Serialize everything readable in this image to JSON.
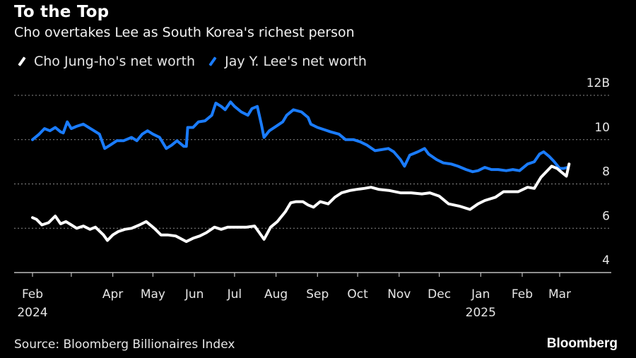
{
  "header": {
    "title": "To the Top",
    "subtitle": "Cho overtakes Lee as South Korea's richest person"
  },
  "legend": [
    {
      "label": "Cho Jung-ho's net worth",
      "color": "#ffffff"
    },
    {
      "label": "Jay Y. Lee's net worth",
      "color": "#1a7cff"
    }
  ],
  "footer": {
    "source": "Source: Bloomberg Billionaires Index",
    "brand": "Bloomberg"
  },
  "chart_data": {
    "type": "line",
    "title": "To the Top",
    "subtitle": "Cho overtakes Lee as South Korea's richest person",
    "xlabel": "",
    "ylabel": "",
    "ylim": [
      4,
      12
    ],
    "xlim": [
      "2024-02-01",
      "2025-03-20"
    ],
    "y_ticks": [
      {
        "value": 12,
        "label": "12B"
      },
      {
        "value": 10,
        "label": "10"
      },
      {
        "value": 8,
        "label": "8"
      },
      {
        "value": 6,
        "label": "6"
      },
      {
        "value": 4,
        "label": "4"
      }
    ],
    "x_ticks": [
      {
        "date": "2024-02-01",
        "label": "Feb",
        "sublabel": "2024"
      },
      {
        "date": "2024-03-01",
        "label": "",
        "sublabel": ""
      },
      {
        "date": "2024-04-01",
        "label": "Apr",
        "sublabel": ""
      },
      {
        "date": "2024-05-01",
        "label": "May",
        "sublabel": ""
      },
      {
        "date": "2024-06-01",
        "label": "Jun",
        "sublabel": ""
      },
      {
        "date": "2024-07-01",
        "label": "Jul",
        "sublabel": ""
      },
      {
        "date": "2024-08-01",
        "label": "Aug",
        "sublabel": ""
      },
      {
        "date": "2024-09-01",
        "label": "Sep",
        "sublabel": ""
      },
      {
        "date": "2024-10-01",
        "label": "Oct",
        "sublabel": ""
      },
      {
        "date": "2024-11-01",
        "label": "Nov",
        "sublabel": ""
      },
      {
        "date": "2024-12-01",
        "label": "Dec",
        "sublabel": ""
      },
      {
        "date": "2025-01-01",
        "label": "Jan",
        "sublabel": "2025"
      },
      {
        "date": "2025-02-01",
        "label": "Feb",
        "sublabel": ""
      },
      {
        "date": "2025-03-01",
        "label": "Mar",
        "sublabel": ""
      }
    ],
    "grid": true,
    "legend_position": "top-left",
    "series": [
      {
        "name": "Jay Y. Lee's net worth",
        "color": "#1a7cff",
        "points": [
          [
            "2024-02-01",
            10.0
          ],
          [
            "2024-02-06",
            10.25
          ],
          [
            "2024-02-10",
            10.5
          ],
          [
            "2024-02-14",
            10.4
          ],
          [
            "2024-02-18",
            10.55
          ],
          [
            "2024-02-22",
            10.35
          ],
          [
            "2024-02-24",
            10.3
          ],
          [
            "2024-02-27",
            10.8
          ],
          [
            "2024-03-01",
            10.5
          ],
          [
            "2024-03-05",
            10.6
          ],
          [
            "2024-03-10",
            10.7
          ],
          [
            "2024-03-14",
            10.55
          ],
          [
            "2024-03-18",
            10.4
          ],
          [
            "2024-03-22",
            10.25
          ],
          [
            "2024-03-26",
            9.6
          ],
          [
            "2024-03-30",
            9.75
          ],
          [
            "2024-04-04",
            9.95
          ],
          [
            "2024-04-09",
            9.95
          ],
          [
            "2024-04-15",
            10.1
          ],
          [
            "2024-04-19",
            9.95
          ],
          [
            "2024-04-23",
            10.25
          ],
          [
            "2024-04-27",
            10.4
          ],
          [
            "2024-05-01",
            10.25
          ],
          [
            "2024-05-06",
            10.1
          ],
          [
            "2024-05-11",
            9.6
          ],
          [
            "2024-05-15",
            9.75
          ],
          [
            "2024-05-19",
            9.95
          ],
          [
            "2024-05-24",
            9.7
          ],
          [
            "2024-05-26",
            9.7
          ],
          [
            "2024-05-27",
            10.55
          ],
          [
            "2024-05-31",
            10.55
          ],
          [
            "2024-06-04",
            10.8
          ],
          [
            "2024-06-09",
            10.85
          ],
          [
            "2024-06-14",
            11.1
          ],
          [
            "2024-06-17",
            11.65
          ],
          [
            "2024-06-21",
            11.5
          ],
          [
            "2024-06-24",
            11.35
          ],
          [
            "2024-06-28",
            11.7
          ],
          [
            "2024-07-01",
            11.5
          ],
          [
            "2024-07-06",
            11.25
          ],
          [
            "2024-07-11",
            11.1
          ],
          [
            "2024-07-14",
            11.4
          ],
          [
            "2024-07-18",
            11.5
          ],
          [
            "2024-07-21",
            10.7
          ],
          [
            "2024-07-23",
            10.1
          ],
          [
            "2024-07-27",
            10.4
          ],
          [
            "2024-08-01",
            10.6
          ],
          [
            "2024-08-06",
            10.8
          ],
          [
            "2024-08-09",
            11.1
          ],
          [
            "2024-08-14",
            11.35
          ],
          [
            "2024-08-20",
            11.25
          ],
          [
            "2024-08-25",
            11.0
          ],
          [
            "2024-08-27",
            10.7
          ],
          [
            "2024-09-01",
            10.55
          ],
          [
            "2024-09-06",
            10.45
          ],
          [
            "2024-09-11",
            10.35
          ],
          [
            "2024-09-17",
            10.25
          ],
          [
            "2024-09-22",
            10.0
          ],
          [
            "2024-09-28",
            10.0
          ],
          [
            "2024-10-03",
            9.9
          ],
          [
            "2024-10-08",
            9.75
          ],
          [
            "2024-10-14",
            9.5
          ],
          [
            "2024-10-19",
            9.55
          ],
          [
            "2024-10-24",
            9.6
          ],
          [
            "2024-10-28",
            9.45
          ],
          [
            "2024-11-02",
            9.1
          ],
          [
            "2024-11-05",
            8.8
          ],
          [
            "2024-11-09",
            9.3
          ],
          [
            "2024-11-15",
            9.45
          ],
          [
            "2024-11-20",
            9.6
          ],
          [
            "2024-11-23",
            9.35
          ],
          [
            "2024-11-29",
            9.1
          ],
          [
            "2024-12-04",
            8.95
          ],
          [
            "2024-12-10",
            8.9
          ],
          [
            "2024-12-15",
            8.8
          ],
          [
            "2024-12-21",
            8.65
          ],
          [
            "2024-12-26",
            8.55
          ],
          [
            "2024-12-30",
            8.6
          ],
          [
            "2025-01-04",
            8.75
          ],
          [
            "2025-01-09",
            8.65
          ],
          [
            "2025-01-14",
            8.65
          ],
          [
            "2025-01-20",
            8.6
          ],
          [
            "2025-01-25",
            8.65
          ],
          [
            "2025-01-30",
            8.6
          ],
          [
            "2025-02-05",
            8.9
          ],
          [
            "2025-02-10",
            9.0
          ],
          [
            "2025-02-14",
            9.35
          ],
          [
            "2025-02-17",
            9.45
          ],
          [
            "2025-02-21",
            9.25
          ],
          [
            "2025-02-25",
            9.0
          ],
          [
            "2025-03-01",
            8.7
          ],
          [
            "2025-03-04",
            8.7
          ],
          [
            "2025-03-07",
            8.75
          ]
        ]
      },
      {
        "name": "Cho Jung-ho's net worth",
        "color": "#ffffff",
        "points": [
          [
            "2024-02-01",
            6.48
          ],
          [
            "2024-02-04",
            6.4
          ],
          [
            "2024-02-08",
            6.15
          ],
          [
            "2024-02-13",
            6.25
          ],
          [
            "2024-02-18",
            6.55
          ],
          [
            "2024-02-22",
            6.2
          ],
          [
            "2024-02-26",
            6.3
          ],
          [
            "2024-03-01",
            6.15
          ],
          [
            "2024-03-05",
            6.0
          ],
          [
            "2024-03-10",
            6.1
          ],
          [
            "2024-03-15",
            5.95
          ],
          [
            "2024-03-19",
            6.05
          ],
          [
            "2024-03-25",
            5.7
          ],
          [
            "2024-03-28",
            5.45
          ],
          [
            "2024-04-01",
            5.7
          ],
          [
            "2024-04-05",
            5.85
          ],
          [
            "2024-04-10",
            5.95
          ],
          [
            "2024-04-15",
            6.0
          ],
          [
            "2024-04-21",
            6.15
          ],
          [
            "2024-04-26",
            6.3
          ],
          [
            "2024-05-02",
            6.0
          ],
          [
            "2024-05-07",
            5.7
          ],
          [
            "2024-05-12",
            5.7
          ],
          [
            "2024-05-18",
            5.65
          ],
          [
            "2024-05-26",
            5.4
          ],
          [
            "2024-05-31",
            5.55
          ],
          [
            "2024-06-05",
            5.65
          ],
          [
            "2024-06-10",
            5.8
          ],
          [
            "2024-06-16",
            6.05
          ],
          [
            "2024-06-21",
            5.95
          ],
          [
            "2024-06-26",
            6.05
          ],
          [
            "2024-07-02",
            6.05
          ],
          [
            "2024-07-10",
            6.05
          ],
          [
            "2024-07-16",
            6.1
          ],
          [
            "2024-07-23",
            5.5
          ],
          [
            "2024-07-28",
            6.05
          ],
          [
            "2024-08-02",
            6.3
          ],
          [
            "2024-08-08",
            6.75
          ],
          [
            "2024-08-12",
            7.15
          ],
          [
            "2024-08-16",
            7.2
          ],
          [
            "2024-08-21",
            7.2
          ],
          [
            "2024-08-25",
            7.05
          ],
          [
            "2024-08-29",
            6.95
          ],
          [
            "2024-09-03",
            7.2
          ],
          [
            "2024-09-09",
            7.1
          ],
          [
            "2024-09-14",
            7.4
          ],
          [
            "2024-09-19",
            7.6
          ],
          [
            "2024-09-25",
            7.7
          ],
          [
            "2024-09-30",
            7.75
          ],
          [
            "2024-10-06",
            7.8
          ],
          [
            "2024-10-11",
            7.85
          ],
          [
            "2024-10-17",
            7.75
          ],
          [
            "2024-10-25",
            7.7
          ],
          [
            "2024-11-02",
            7.6
          ],
          [
            "2024-11-10",
            7.6
          ],
          [
            "2024-11-18",
            7.55
          ],
          [
            "2024-11-24",
            7.6
          ],
          [
            "2024-12-01",
            7.45
          ],
          [
            "2024-12-08",
            7.1
          ],
          [
            "2024-12-16",
            7.0
          ],
          [
            "2024-12-24",
            6.85
          ],
          [
            "2024-12-30",
            7.1
          ],
          [
            "2025-01-04",
            7.25
          ],
          [
            "2025-01-12",
            7.4
          ],
          [
            "2025-01-18",
            7.65
          ],
          [
            "2025-01-29",
            7.65
          ],
          [
            "2025-02-05",
            7.85
          ],
          [
            "2025-02-10",
            7.8
          ],
          [
            "2025-02-15",
            8.3
          ],
          [
            "2025-02-23",
            8.8
          ],
          [
            "2025-02-27",
            8.7
          ],
          [
            "2025-03-03",
            8.5
          ],
          [
            "2025-03-06",
            8.35
          ],
          [
            "2025-03-08",
            8.9
          ]
        ]
      }
    ]
  }
}
